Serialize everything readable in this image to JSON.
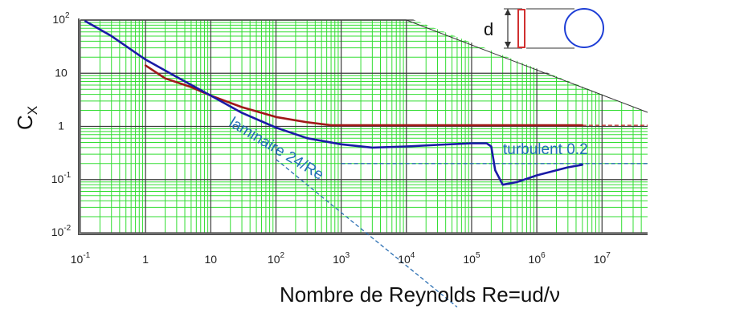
{
  "chart_data": {
    "type": "line",
    "title": "",
    "ylabel": {
      "main": "C",
      "sub": "X"
    },
    "xlabel": "Nombre de Reynolds Re=ud/ν",
    "x_scale": "log",
    "y_scale": "log",
    "xlim": [
      0.1,
      50000000
    ],
    "ylim": [
      0.01,
      100
    ],
    "grid": true,
    "x_ticks": [
      {
        "value": 0.1,
        "base": "10",
        "exp": "-1"
      },
      {
        "value": 1,
        "base": "1",
        "exp": ""
      },
      {
        "value": 10,
        "base": "10",
        "exp": ""
      },
      {
        "value": 100,
        "base": "10",
        "exp": "2"
      },
      {
        "value": 1000,
        "base": "10",
        "exp": "3"
      },
      {
        "value": 10000,
        "base": "10",
        "exp": "4"
      },
      {
        "value": 100000,
        "base": "10",
        "exp": "5"
      },
      {
        "value": 1000000,
        "base": "10",
        "exp": "6"
      },
      {
        "value": 10000000,
        "base": "10",
        "exp": "7"
      }
    ],
    "y_ticks": [
      {
        "value": 100,
        "base": "10",
        "exp": "2"
      },
      {
        "value": 10,
        "base": "10",
        "exp": ""
      },
      {
        "value": 1,
        "base": "1",
        "exp": ""
      },
      {
        "value": 0.1,
        "base": "10",
        "exp": "-1"
      },
      {
        "value": 0.01,
        "base": "10",
        "exp": "-2"
      }
    ],
    "series": [
      {
        "color": "#1a1aa6",
        "x": [
          0.12,
          0.3,
          1,
          3,
          10,
          30,
          100,
          300,
          1000,
          3000,
          10000,
          30000,
          100000,
          170000,
          200000,
          230000,
          300000,
          500000,
          1000000,
          3000000,
          5000000
        ],
        "y": [
          95,
          50,
          18,
          8.5,
          3.8,
          1.8,
          0.95,
          0.6,
          0.46,
          0.4,
          0.42,
          0.45,
          0.48,
          0.48,
          0.42,
          0.15,
          0.08,
          0.09,
          0.12,
          0.17,
          0.19
        ]
      },
      {
        "color": "#a01818",
        "x": [
          1,
          2,
          5,
          10,
          30,
          100,
          300,
          700,
          1000,
          10000,
          100000,
          1000000,
          5000000
        ],
        "y": [
          14,
          8,
          5.5,
          3.8,
          2.3,
          1.5,
          1.2,
          1.05,
          1.05,
          1.05,
          1.05,
          1.05,
          1.05
        ]
      }
    ],
    "reference_lines": [
      {
        "label": "laminaire 24/Re",
        "color": "#2b6fb3",
        "x": [
          100,
          60000
        ],
        "y": [
          0.24,
          0.0004
        ]
      },
      {
        "label": "turbulent 0.2",
        "color": "#2b6fb3",
        "x": [
          1000,
          50000000
        ],
        "y": [
          0.2,
          0.2
        ]
      },
      {
        "label": "",
        "color": "#c02020",
        "x": [
          5000000,
          50000000
        ],
        "y": [
          1.05,
          1.05
        ]
      }
    ],
    "annotations": [
      {
        "text": "laminaire  24/Re",
        "color": "#1f6db5"
      },
      {
        "text": "turbulent 0.2",
        "color": "#1f6db5"
      }
    ],
    "inset": {
      "label": "d"
    }
  }
}
